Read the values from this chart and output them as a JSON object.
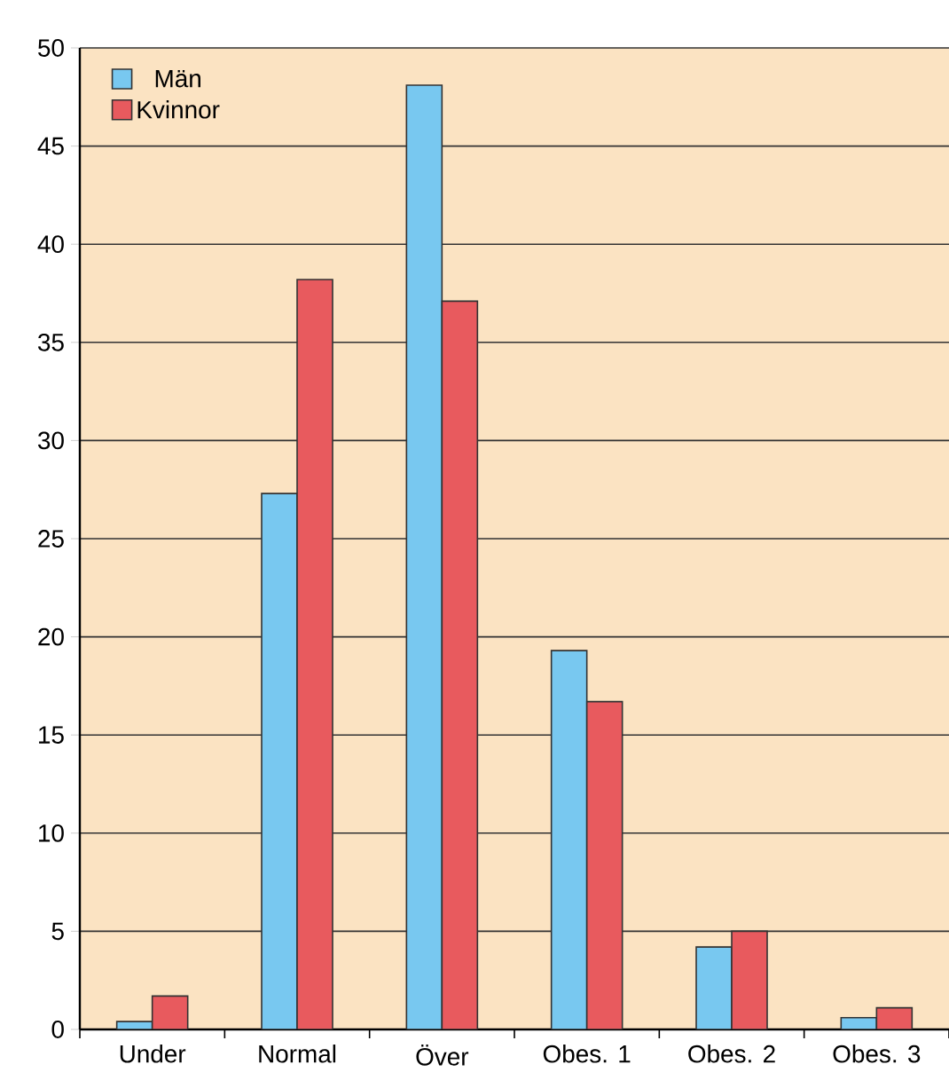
{
  "chart_data": {
    "type": "bar",
    "categories": [
      "Under",
      "Normal",
      "Över",
      "Obes. 1",
      "Obes. 2",
      "Obes. 3"
    ],
    "series": [
      {
        "name": "Män",
        "color": "#78c8f0",
        "values": [
          0.4,
          27.3,
          48.1,
          19.3,
          4.2,
          0.6
        ]
      },
      {
        "name": "Kvinnor",
        "color": "#e85a5e",
        "values": [
          1.7,
          38.2,
          37.1,
          16.7,
          5.0,
          1.1
        ]
      }
    ],
    "ylim": [
      0,
      50
    ],
    "yticks": [
      0,
      5,
      10,
      15,
      20,
      25,
      30,
      35,
      40,
      45,
      50
    ],
    "grid": "y",
    "legend": "top left"
  }
}
